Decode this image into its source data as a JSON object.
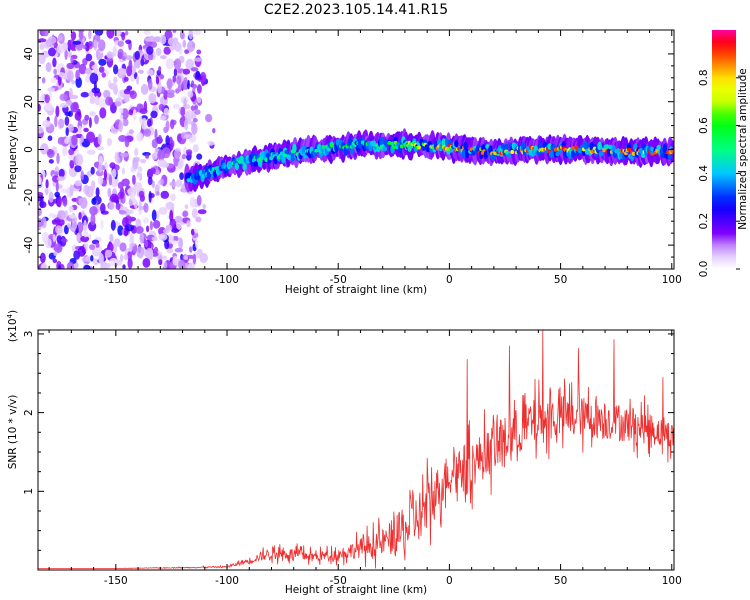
{
  "title": "C2E2.2023.105.14.41.R15",
  "colors": {
    "snr_line": "#ee2f2f",
    "axis": "#000000",
    "background": "#ffffff",
    "colorbar": [
      "#ff00aa",
      "#ff0000",
      "#ff7f00",
      "#ffff00",
      "#7fff00",
      "#00ff00",
      "#00ffff",
      "#007fff",
      "#0000ff",
      "#7f00ff",
      "#ffffff"
    ]
  },
  "chart_data": [
    {
      "type": "heatmap",
      "title": "C2E2.2023.105.14.41.R15",
      "xlabel": "Height of straight line (km)",
      "ylabel": "Frequency (Hz)",
      "xlim": [
        -185,
        101
      ],
      "ylim": [
        -50,
        50
      ],
      "xticks": [
        -150,
        -100,
        -50,
        0,
        50,
        100
      ],
      "yticks": [
        -40,
        -20,
        0,
        20,
        40
      ],
      "colorbar": {
        "label": "Normalized spectral amplitude",
        "range": [
          0,
          1
        ],
        "ticks": [
          "0.0",
          "0.2",
          "0.4",
          "0.6",
          "0.8"
        ]
      },
      "noise_region_km": [
        -185,
        -112
      ],
      "signal_trace": {
        "x": [
          -115,
          -100,
          -80,
          -60,
          -40,
          -20,
          0,
          20,
          40,
          60,
          80,
          100
        ],
        "freq_hz": [
          -12,
          -7,
          -3,
          0,
          2,
          2,
          1,
          -1,
          0,
          0,
          -1,
          -1
        ],
        "peak_amplitude": [
          0.45,
          0.5,
          0.55,
          0.6,
          0.6,
          0.7,
          0.95,
          0.95,
          0.95,
          0.95,
          0.95,
          0.95
        ]
      }
    },
    {
      "type": "line",
      "xlabel": "Height of straight line (km)",
      "ylabel": "SNR (10 * v/v)",
      "scale_label": "(x10",
      "scale_exponent": "4",
      "scale_label_end": ")",
      "xlim": [
        -185,
        101
      ],
      "ylim": [
        0,
        3.05
      ],
      "xticks": [
        -150,
        -100,
        -50,
        0,
        50,
        100
      ],
      "yticks": [
        1,
        2,
        3
      ],
      "series": [
        {
          "name": "SNR",
          "x": [
            -185,
            -150,
            -120,
            -100,
            -90,
            -80,
            -70,
            -60,
            -50,
            -40,
            -30,
            -20,
            -10,
            0,
            10,
            20,
            30,
            40,
            50,
            60,
            70,
            80,
            90,
            100
          ],
          "y": [
            0.02,
            0.02,
            0.03,
            0.04,
            0.12,
            0.22,
            0.2,
            0.17,
            0.2,
            0.28,
            0.35,
            0.5,
            0.8,
            1.25,
            1.35,
            1.55,
            1.75,
            1.9,
            1.95,
            1.95,
            1.9,
            1.85,
            1.8,
            1.7
          ],
          "noise_amplitude": [
            0,
            0,
            0.01,
            0.02,
            0.08,
            0.15,
            0.15,
            0.12,
            0.15,
            0.25,
            0.35,
            0.6,
            0.7,
            0.5,
            0.6,
            0.6,
            0.6,
            0.6,
            0.55,
            0.5,
            0.5,
            0.45,
            0.4,
            0.35
          ],
          "peaks": [
            {
              "x": 8,
              "y": 2.68
            },
            {
              "x": 27,
              "y": 2.85
            },
            {
              "x": 42,
              "y": 3.05
            },
            {
              "x": 58,
              "y": 2.82
            },
            {
              "x": 74,
              "y": 2.93
            },
            {
              "x": 96,
              "y": 2.45
            }
          ]
        }
      ]
    }
  ]
}
